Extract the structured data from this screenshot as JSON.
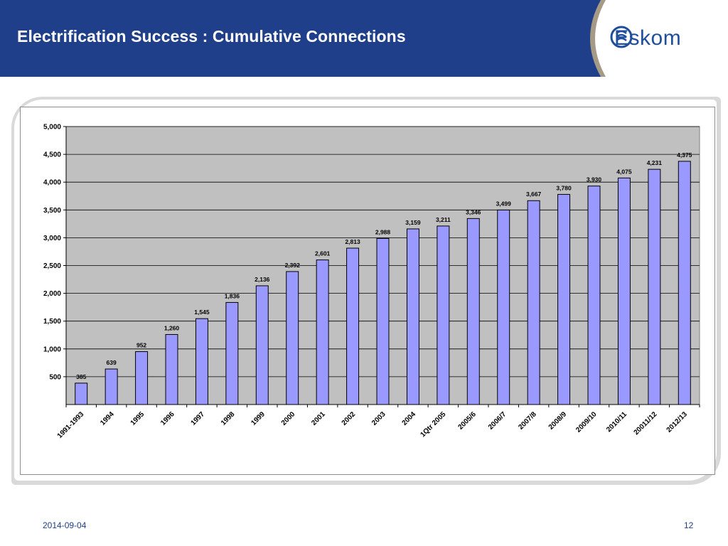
{
  "slide": {
    "title": "Electrification Success : Cumulative Connections",
    "logo_text": "Eskom",
    "date": "2014-09-04",
    "page_number": "12"
  },
  "colors": {
    "header_blue": "#1f3f8a",
    "bar_fill": "#9999ff",
    "bar_stroke": "#000000",
    "plot_bg": "#c0c0c0",
    "logo_blue": "#1f4e9c"
  },
  "chart_data": {
    "type": "bar",
    "title": "",
    "xlabel": "",
    "ylabel": "",
    "ylim": [
      0,
      5000
    ],
    "yticks": [
      "500",
      "1,000",
      "1,500",
      "2,000",
      "2,500",
      "3,000",
      "3,500",
      "4,000",
      "4,500",
      "5,000"
    ],
    "ytick_values": [
      500,
      1000,
      1500,
      2000,
      2500,
      3000,
      3500,
      4000,
      4500,
      5000
    ],
    "grid": true,
    "categories": [
      "1991-1993",
      "1994",
      "1995",
      "1996",
      "1997",
      "1998",
      "1999",
      "2000",
      "2001",
      "2002",
      "2003",
      "2004",
      "1Qtr 2005",
      "2005/6",
      "2006/7",
      "2007/8",
      "2008/9",
      "2009/10",
      "2010/11",
      "20011/12",
      "2012/13"
    ],
    "values": [
      385,
      639,
      952,
      1260,
      1545,
      1836,
      2136,
      2392,
      2601,
      2813,
      2988,
      3159,
      3211,
      3346,
      3499,
      3667,
      3780,
      3930,
      4075,
      4231,
      4375
    ],
    "data_labels": [
      "385",
      "639",
      "952",
      "1,260",
      "1,545",
      "1,836",
      "2,136",
      "2,392",
      "2,601",
      "2,813",
      "2,988",
      "3,159",
      "3,211",
      "3,346",
      "3,499",
      "3,667",
      "3,780",
      "3,930",
      "4,075",
      "4,231",
      "4,375"
    ]
  }
}
